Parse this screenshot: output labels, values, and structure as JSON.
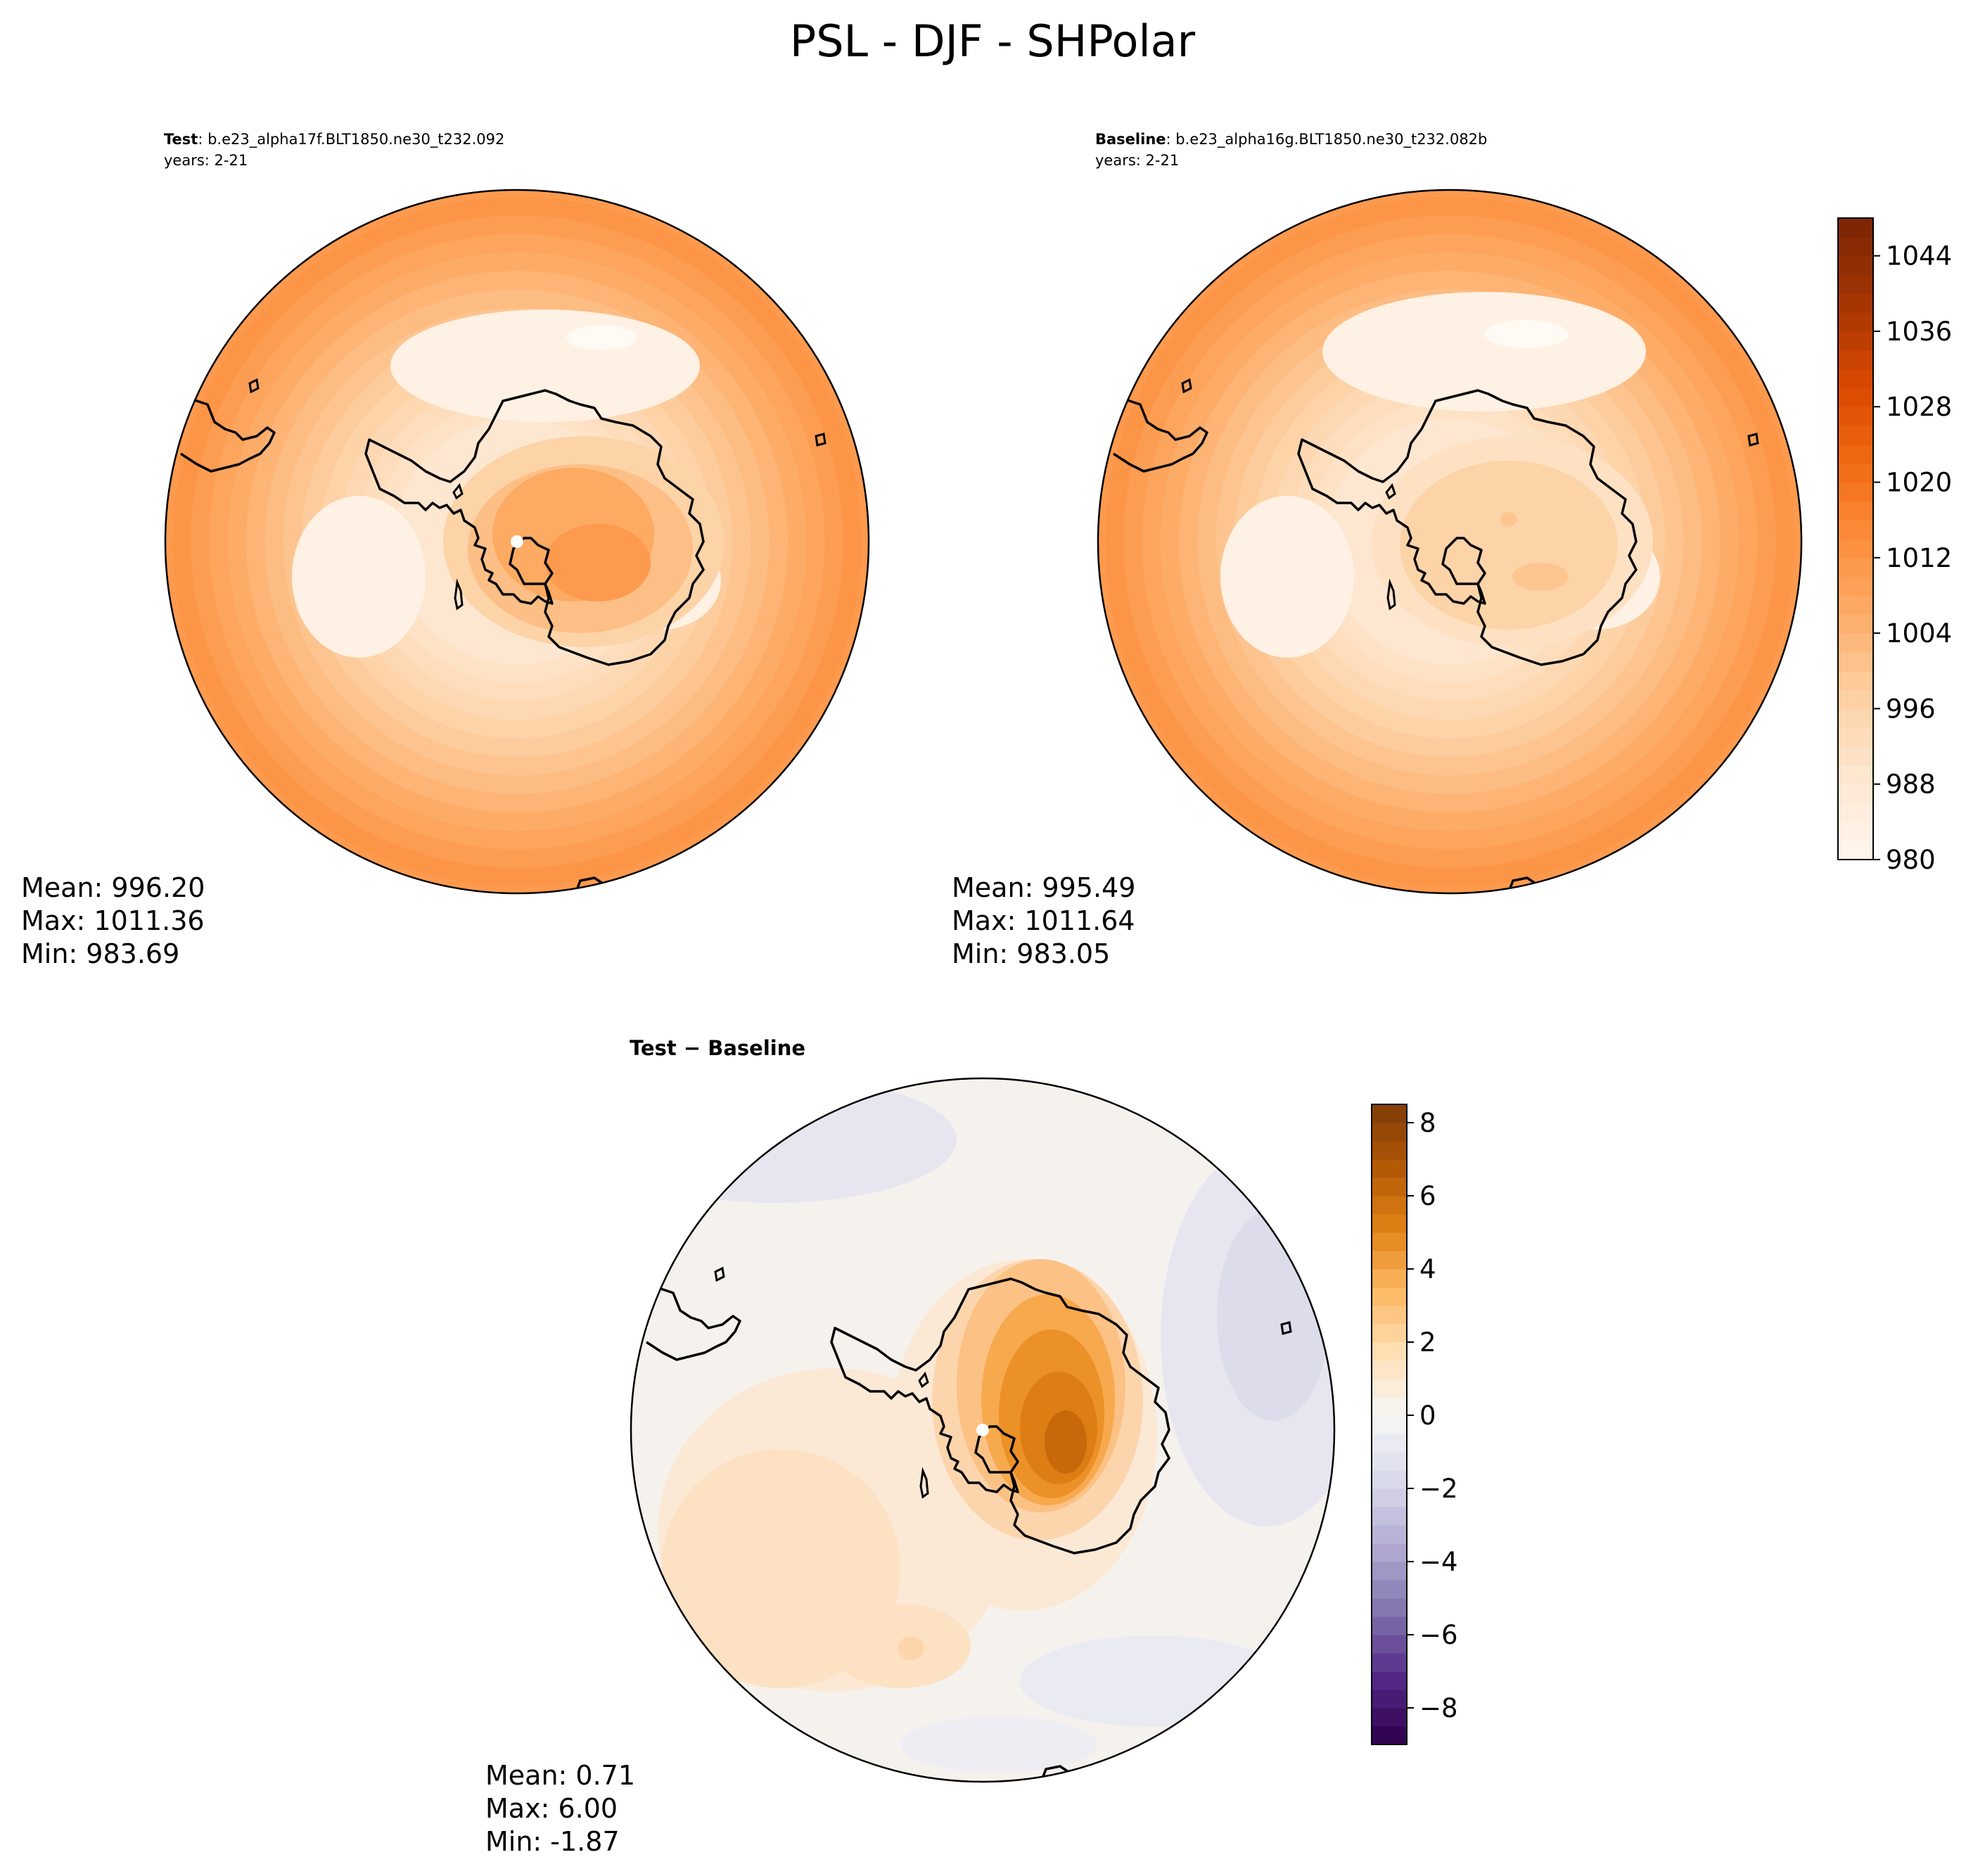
{
  "figure": {
    "title": "PSL - DJF - SHPolar"
  },
  "chart_data": [
    {
      "id": "test",
      "type": "polar_contour_map",
      "title_bold": "Test",
      "title_rest": ": b.e23_alpha17f.BLT1850.ne30_t232.092",
      "subtitle": "years: 2-21",
      "stats": {
        "mean": "Mean: 996.20",
        "max": "Max: 1011.36",
        "min": "Min: 983.69"
      },
      "field": {
        "outer_value": 1012,
        "ring_levels": [
          1012,
          1010,
          1008,
          1006,
          1004,
          1002,
          1000,
          998,
          996,
          994,
          992,
          990,
          988
        ],
        "high_over_continent": 1004,
        "low_center": 984
      }
    },
    {
      "id": "baseline",
      "type": "polar_contour_map",
      "title_bold": "Baseline",
      "title_rest": ": b.e23_alpha16g.BLT1850.ne30_t232.082b",
      "subtitle": "years: 2-21",
      "stats": {
        "mean": "Mean: 995.49",
        "max": "Max: 1011.64",
        "min": "Min: 983.05"
      },
      "field": {
        "outer_value": 1012,
        "ring_levels": [
          1012,
          1010,
          1008,
          1006,
          1004,
          1002,
          1000,
          998,
          996,
          994,
          992,
          990,
          988
        ],
        "high_over_continent": 998,
        "low_center": 984
      },
      "colorbar": {
        "vmin": 980,
        "vmax": 1048,
        "step": 2,
        "ticks": [
          980,
          988,
          996,
          1004,
          1012,
          1020,
          1028,
          1036,
          1044
        ],
        "colormap": "Oranges"
      }
    },
    {
      "id": "diff",
      "type": "polar_contour_map",
      "title": "Test − Baseline",
      "stats": {
        "mean": "Mean:  0.71",
        "max": "Max:  6.00",
        "min": "Min: -1.87"
      },
      "field": {
        "continent_max": 6.0,
        "ocean_min": -1.87,
        "southern_band": 1.5
      },
      "colorbar": {
        "vmin": -9,
        "vmax": 8.5,
        "step": 0.5,
        "ticks": [
          -8,
          -6,
          -4,
          -2,
          0,
          2,
          4,
          6,
          8
        ],
        "tick_labels": [
          "−8",
          "−6",
          "−4",
          "−2",
          "0",
          "2",
          "4",
          "6",
          "8"
        ],
        "colormap": "PuOr_r"
      }
    }
  ],
  "colors": {
    "oranges": [
      "#fff5eb",
      "#fee6ce",
      "#fdd0a2",
      "#fdae6b",
      "#fd8d3c",
      "#f16913",
      "#d94801",
      "#a63603",
      "#7f2704"
    ],
    "diverging": [
      "#2d004b",
      "#542788",
      "#8073ac",
      "#b2abd2",
      "#d8daeb",
      "#f7f7f7",
      "#fee0b6",
      "#fdb863",
      "#e08214",
      "#b35806",
      "#7f3b08"
    ]
  }
}
